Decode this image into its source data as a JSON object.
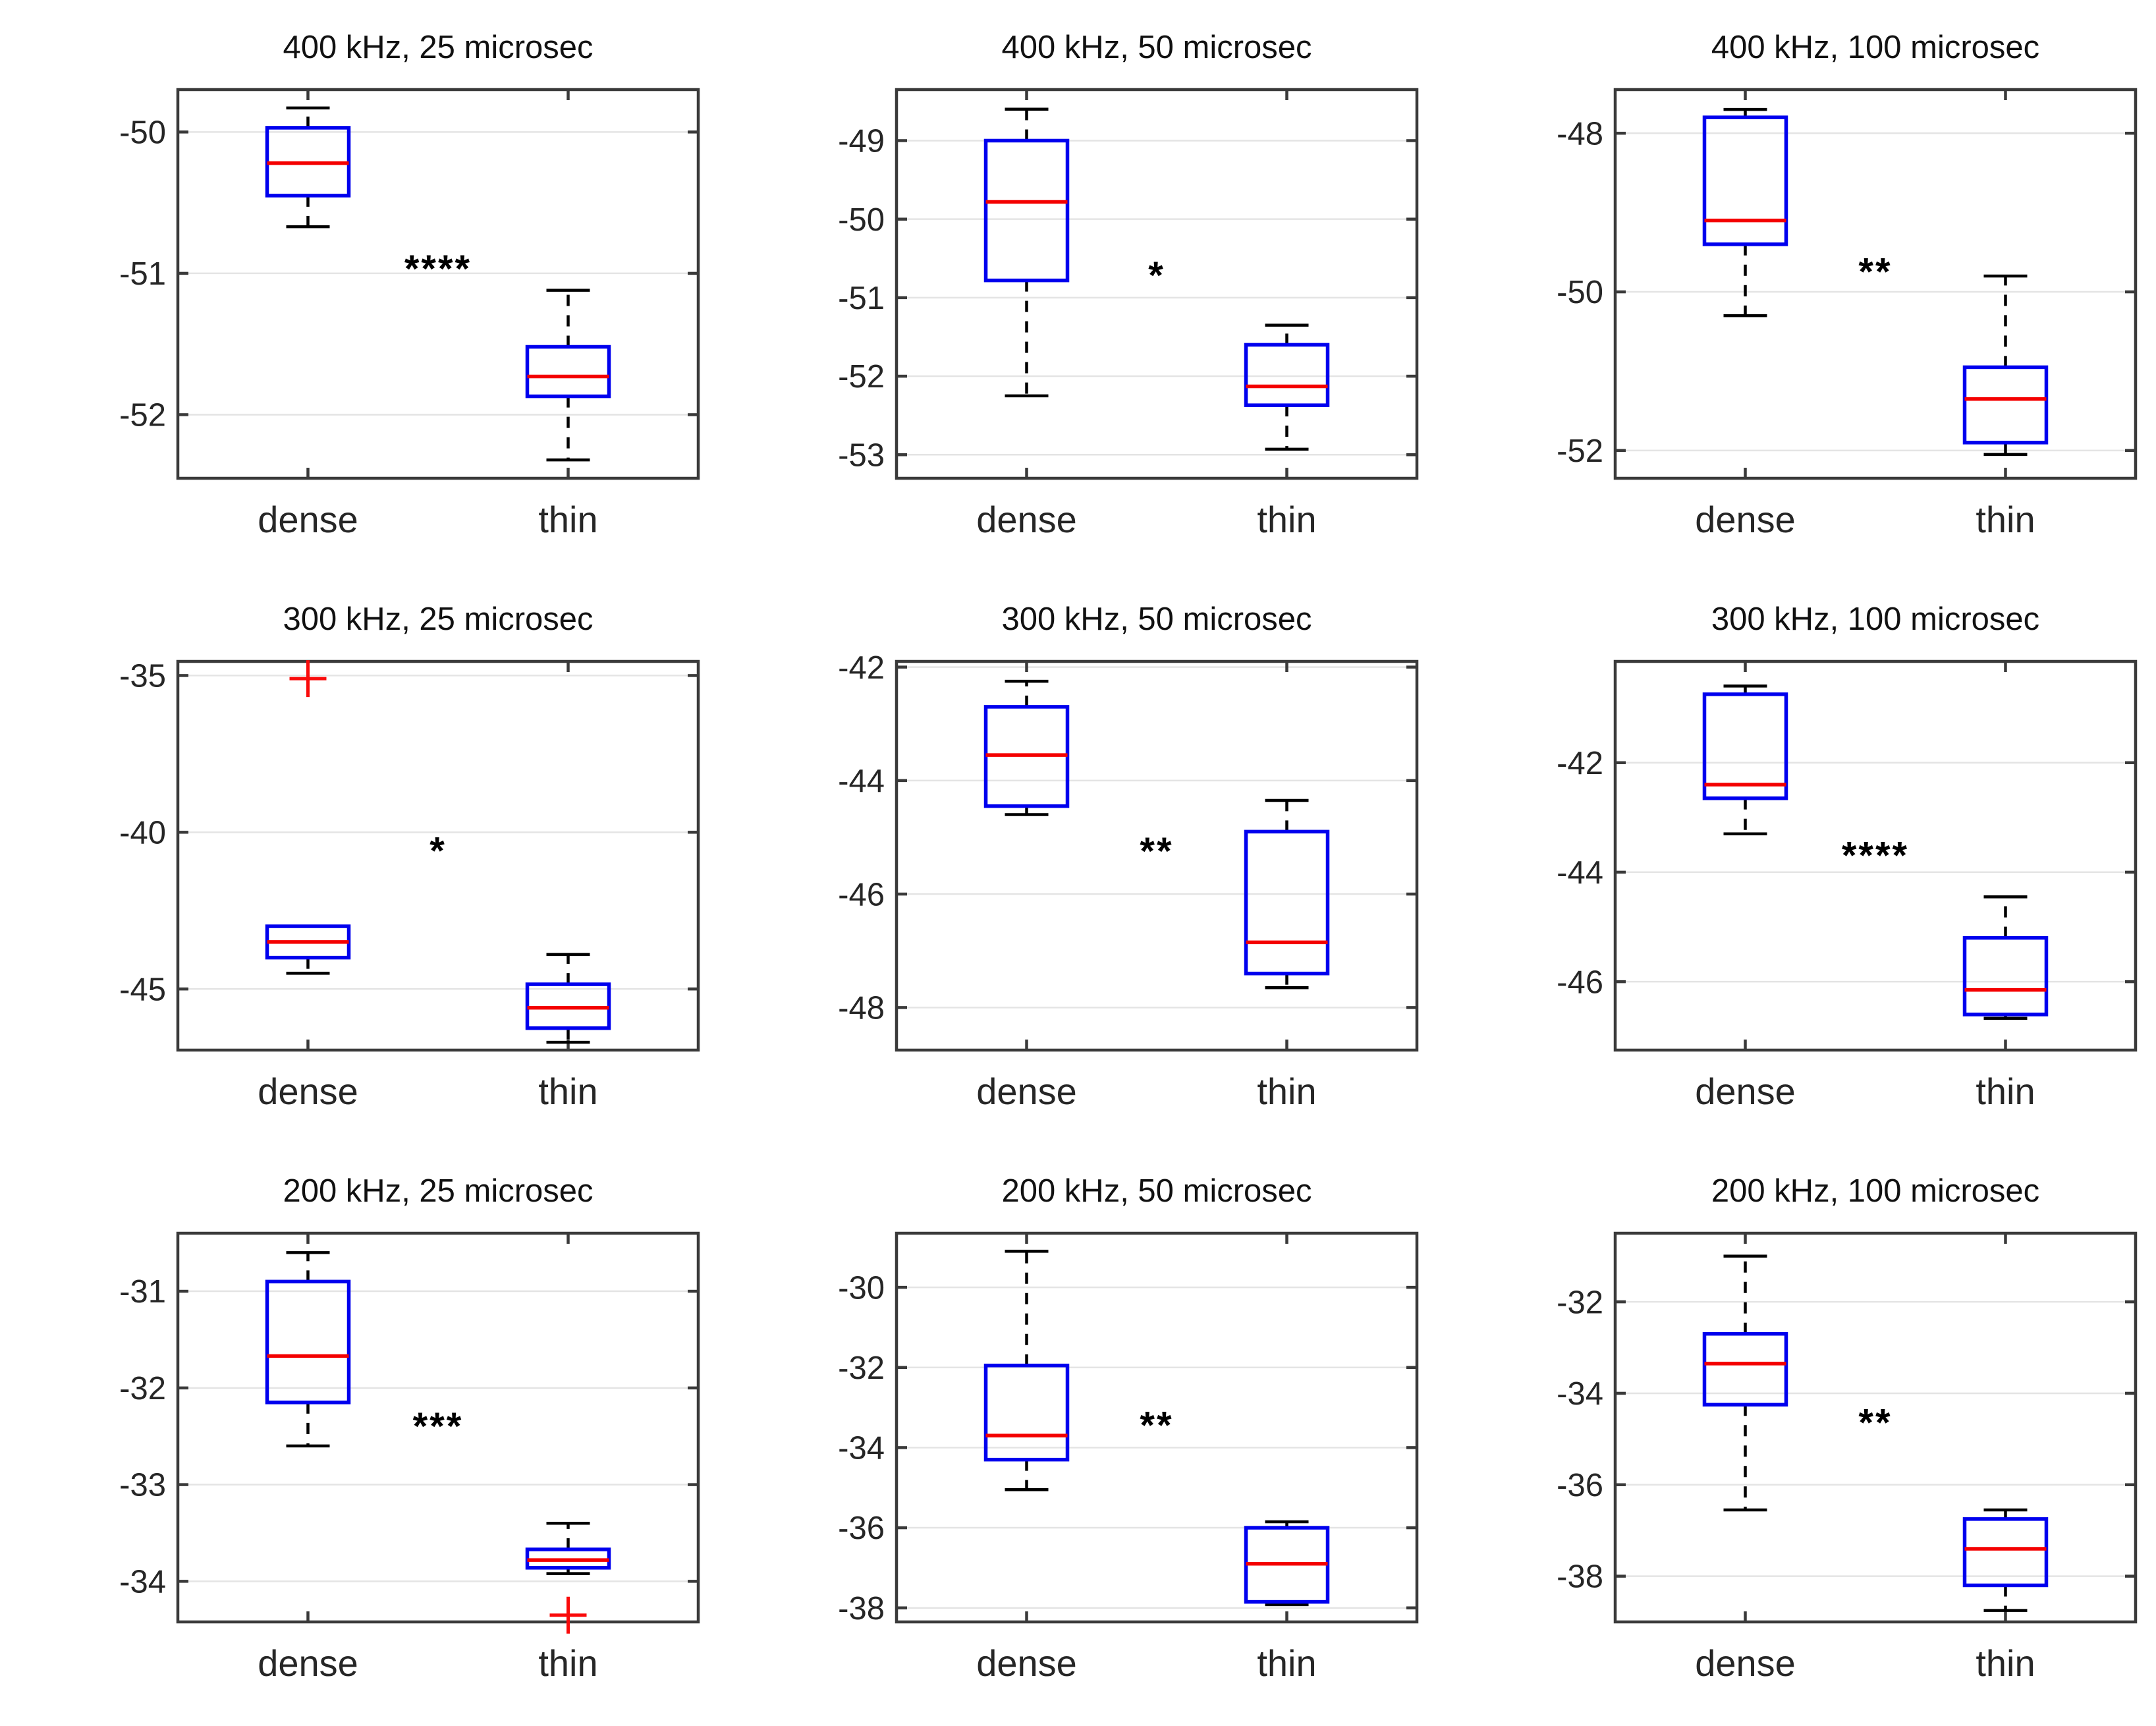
{
  "figure": {
    "categories": [
      "dense",
      "thin"
    ],
    "colors": {
      "box": "#0000ee",
      "median": "#f40000",
      "whisker": "#000000",
      "outlier": "#fa0a0a",
      "grid": "#e4e4e4",
      "axis": "#3a3a3a",
      "tick_label": "#262626",
      "title": "#111111",
      "significance": "#000000",
      "background": "#ffffff"
    }
  },
  "chart_data": [
    {
      "type": "boxplot",
      "title": "400 kHz, 25 microsec",
      "ylim": [
        -52.45,
        -49.7
      ],
      "yticks": [
        -50,
        -51,
        -52
      ],
      "significance": {
        "label": "****",
        "y": -50.97
      },
      "boxes": [
        {
          "category": "dense",
          "whisker_low": -50.67,
          "q1": -50.45,
          "median": -50.22,
          "q3": -49.97,
          "whisker_high": -49.83,
          "outliers": []
        },
        {
          "category": "thin",
          "whisker_low": -52.32,
          "q1": -51.87,
          "median": -51.73,
          "q3": -51.52,
          "whisker_high": -51.12,
          "outliers": []
        }
      ]
    },
    {
      "type": "boxplot",
      "title": "400 kHz, 50 microsec",
      "ylim": [
        -53.3,
        -48.35
      ],
      "yticks": [
        -49,
        -50,
        -51,
        -52,
        -53
      ],
      "significance": {
        "label": "*",
        "y": -50.72
      },
      "boxes": [
        {
          "category": "dense",
          "whisker_low": -52.25,
          "q1": -50.78,
          "median": -49.78,
          "q3": -49.0,
          "whisker_high": -48.6,
          "outliers": []
        },
        {
          "category": "thin",
          "whisker_low": -52.93,
          "q1": -52.37,
          "median": -52.13,
          "q3": -51.6,
          "whisker_high": -51.35,
          "outliers": []
        }
      ]
    },
    {
      "type": "boxplot",
      "title": "400 kHz, 100 microsec",
      "ylim": [
        -52.35,
        -47.45
      ],
      "yticks": [
        -48,
        -50,
        -52
      ],
      "significance": {
        "label": "**",
        "y": -49.75
      },
      "boxes": [
        {
          "category": "dense",
          "whisker_low": -50.3,
          "q1": -49.4,
          "median": -49.1,
          "q3": -47.8,
          "whisker_high": -47.7,
          "outliers": []
        },
        {
          "category": "thin",
          "whisker_low": -52.05,
          "q1": -51.9,
          "median": -51.35,
          "q3": -50.95,
          "whisker_high": -49.8,
          "outliers": []
        }
      ]
    },
    {
      "type": "boxplot",
      "title": "300 kHz, 25 microsec",
      "ylim": [
        -46.95,
        -34.55
      ],
      "yticks": [
        -35,
        -40,
        -45
      ],
      "significance": {
        "label": "*",
        "y": -40.6
      },
      "boxes": [
        {
          "category": "dense",
          "whisker_low": -44.5,
          "q1": -44.0,
          "median": -43.5,
          "q3": -43.0,
          "whisker_high": -43.0,
          "outliers": [
            -35.1
          ]
        },
        {
          "category": "thin",
          "whisker_low": -46.7,
          "q1": -46.25,
          "median": -45.6,
          "q3": -44.85,
          "whisker_high": -43.9,
          "outliers": []
        }
      ]
    },
    {
      "type": "boxplot",
      "title": "300 kHz, 50 microsec",
      "ylim": [
        -48.75,
        -41.9
      ],
      "yticks": [
        -42,
        -44,
        -46,
        -48
      ],
      "significance": {
        "label": "**",
        "y": -45.25
      },
      "boxes": [
        {
          "category": "dense",
          "whisker_low": -44.6,
          "q1": -44.45,
          "median": -43.55,
          "q3": -42.7,
          "whisker_high": -42.25,
          "outliers": []
        },
        {
          "category": "thin",
          "whisker_low": -47.65,
          "q1": -47.4,
          "median": -46.85,
          "q3": -44.9,
          "whisker_high": -44.35,
          "outliers": []
        }
      ]
    },
    {
      "type": "boxplot",
      "title": "300 kHz, 100 microsec",
      "ylim": [
        -47.25,
        -40.15
      ],
      "yticks": [
        -42,
        -44,
        -46
      ],
      "significance": {
        "label": "****",
        "y": -43.7
      },
      "boxes": [
        {
          "category": "dense",
          "whisker_low": -43.3,
          "q1": -42.65,
          "median": -42.4,
          "q3": -40.75,
          "whisker_high": -40.6,
          "outliers": []
        },
        {
          "category": "thin",
          "whisker_low": -46.67,
          "q1": -46.6,
          "median": -46.15,
          "q3": -45.2,
          "whisker_high": -44.45,
          "outliers": []
        }
      ]
    },
    {
      "type": "boxplot",
      "title": "200 kHz, 25 microsec",
      "ylim": [
        -34.42,
        -30.4
      ],
      "yticks": [
        -31,
        -32,
        -33,
        -34
      ],
      "significance": {
        "label": "***",
        "y": -32.4
      },
      "boxes": [
        {
          "category": "dense",
          "whisker_low": -32.6,
          "q1": -32.15,
          "median": -31.67,
          "q3": -30.9,
          "whisker_high": -30.6,
          "outliers": []
        },
        {
          "category": "thin",
          "whisker_low": -33.92,
          "q1": -33.86,
          "median": -33.78,
          "q3": -33.67,
          "whisker_high": -33.4,
          "outliers": [
            -34.35
          ]
        }
      ]
    },
    {
      "type": "boxplot",
      "title": "200 kHz, 50 microsec",
      "ylim": [
        -38.35,
        -28.65
      ],
      "yticks": [
        -30,
        -32,
        -34,
        -36,
        -38
      ],
      "significance": {
        "label": "**",
        "y": -33.45
      },
      "boxes": [
        {
          "category": "dense",
          "whisker_low": -35.05,
          "q1": -34.3,
          "median": -33.7,
          "q3": -31.95,
          "whisker_high": -29.1,
          "outliers": []
        },
        {
          "category": "thin",
          "whisker_low": -37.92,
          "q1": -37.85,
          "median": -36.9,
          "q3": -36.0,
          "whisker_high": -35.85,
          "outliers": []
        }
      ]
    },
    {
      "type": "boxplot",
      "title": "200 kHz, 100 microsec",
      "ylim": [
        -39.0,
        -30.5
      ],
      "yticks": [
        -32,
        -34,
        -36,
        -38
      ],
      "significance": {
        "label": "**",
        "y": -34.65
      },
      "boxes": [
        {
          "category": "dense",
          "whisker_low": -36.55,
          "q1": -34.25,
          "median": -33.35,
          "q3": -32.7,
          "whisker_high": -31.0,
          "outliers": []
        },
        {
          "category": "thin",
          "whisker_low": -38.75,
          "q1": -38.2,
          "median": -37.4,
          "q3": -36.75,
          "whisker_high": -36.55,
          "outliers": []
        }
      ]
    }
  ]
}
